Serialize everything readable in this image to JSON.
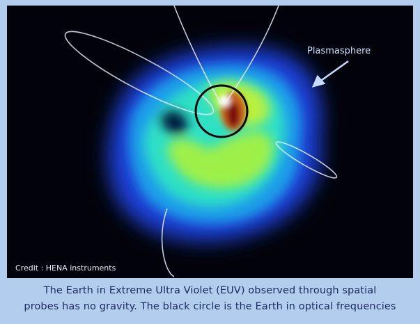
{
  "image": {
    "label": "Plasmasphere",
    "credit": "Credit : HENA instruments"
  },
  "caption": {
    "lines": [
      "The Earth in Extreme Ultra Violet (EUV) observed through spatial",
      "probes has no gravity. The black circle is the Earth in optical frequencies"
    ]
  }
}
